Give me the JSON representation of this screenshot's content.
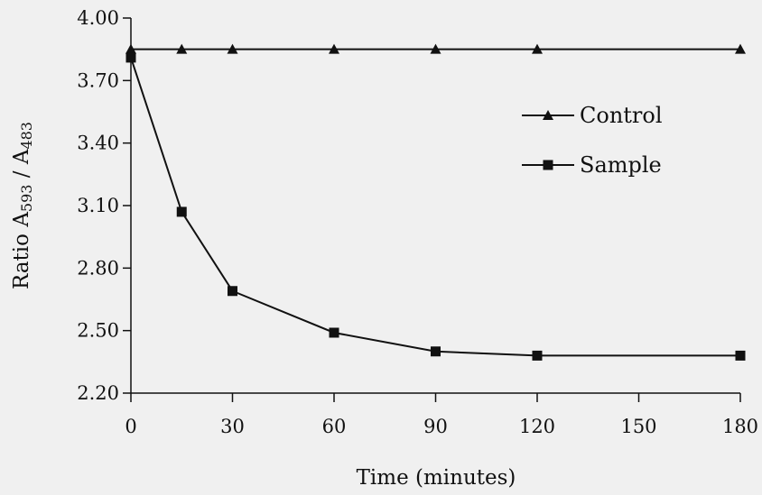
{
  "chart_data": {
    "type": "line",
    "xlabel": "Time (minutes)",
    "ylabel_main": "Ratio A",
    "ylabel_sub1": "593",
    "ylabel_sep": " / A",
    "ylabel_sub2": "483",
    "xlim": [
      0,
      180
    ],
    "ylim": [
      2.2,
      4.0
    ],
    "x_ticks": [
      "0",
      "30",
      "60",
      "90",
      "120",
      "150",
      "180"
    ],
    "x_tick_values": [
      0,
      30,
      60,
      90,
      120,
      150,
      180
    ],
    "y_ticks": [
      "4.00",
      "3.70",
      "3.40",
      "3.10",
      "2.80",
      "2.50",
      "2.20"
    ],
    "y_tick_values": [
      4.0,
      3.7,
      3.4,
      3.1,
      2.8,
      2.5,
      2.2
    ],
    "grid": false,
    "legend_position": "top-right",
    "series": [
      {
        "name": "Control",
        "marker": "triangle",
        "x": [
          0,
          15,
          30,
          60,
          90,
          120,
          180
        ],
        "y": [
          3.85,
          3.85,
          3.85,
          3.85,
          3.85,
          3.85,
          3.85
        ]
      },
      {
        "name": "Sample",
        "marker": "square",
        "x": [
          0,
          15,
          30,
          60,
          90,
          120,
          180
        ],
        "y": [
          3.81,
          3.07,
          2.69,
          2.49,
          2.4,
          2.38,
          2.38
        ]
      }
    ]
  }
}
